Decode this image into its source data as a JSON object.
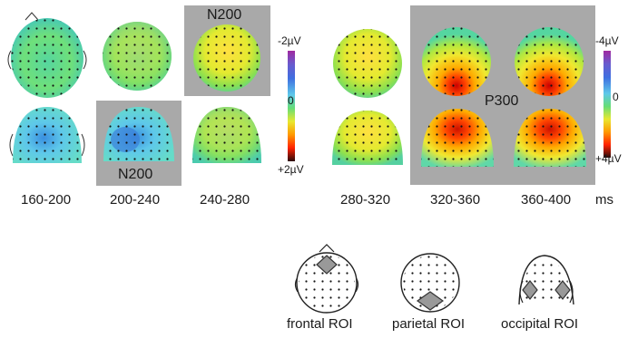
{
  "time_windows_left": [
    "160-200",
    "200-240",
    "240-280"
  ],
  "time_windows_right": [
    "280-320",
    "320-360",
    "360-400"
  ],
  "time_unit": "ms",
  "component_labels": {
    "n200_top": "N200",
    "n200_bottom": "N200",
    "p300": "P300"
  },
  "colorbar_left": {
    "top": "-2µV",
    "zero": "0",
    "bottom": "+2µV"
  },
  "colorbar_right": {
    "top": "-4µV",
    "zero": "0",
    "bottom": "+4µV"
  },
  "roi_labels": [
    "frontal ROI",
    "parietal ROI",
    "occipital ROI"
  ],
  "colors": {
    "highlight_gray": "#a9a9a9",
    "scale": [
      "#9b2d9b",
      "#6a5acd",
      "#4169e1",
      "#5ec8ea",
      "#66dd66",
      "#e8e830",
      "#ff9900",
      "#ff3300",
      "#cc0000",
      "#331111"
    ]
  }
}
